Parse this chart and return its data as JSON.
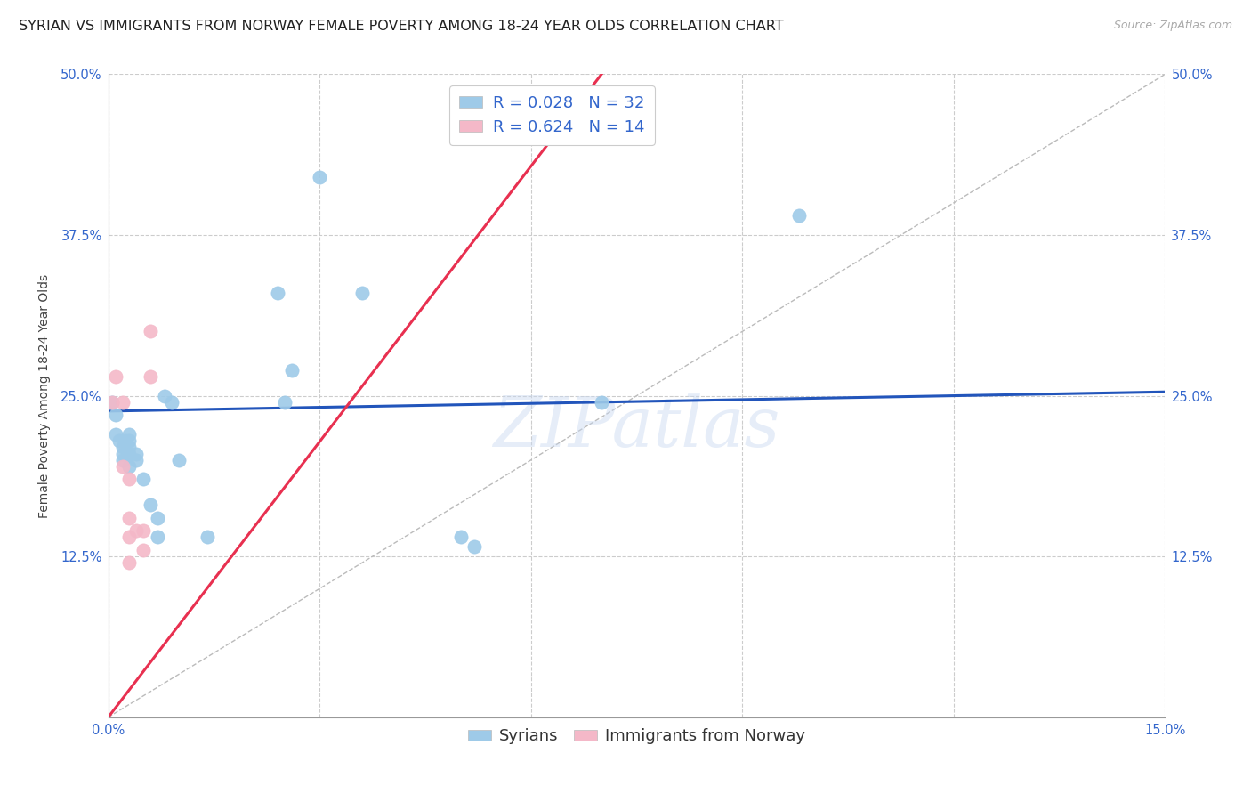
{
  "title": "SYRIAN VS IMMIGRANTS FROM NORWAY FEMALE POVERTY AMONG 18-24 YEAR OLDS CORRELATION CHART",
  "source": "Source: ZipAtlas.com",
  "ylabel": "Female Poverty Among 18-24 Year Olds",
  "xlim": [
    0.0,
    0.15
  ],
  "ylim": [
    0.0,
    0.5
  ],
  "xticks": [
    0.0,
    0.03,
    0.06,
    0.09,
    0.12,
    0.15
  ],
  "xtick_labels": [
    "0.0%",
    "",
    "",
    "",
    "",
    "15.0%"
  ],
  "yticks": [
    0.0,
    0.125,
    0.25,
    0.375,
    0.5
  ],
  "ytick_labels_left": [
    "",
    "12.5%",
    "25.0%",
    "37.5%",
    "50.0%"
  ],
  "ytick_labels_right": [
    "",
    "12.5%",
    "25.0%",
    "37.5%",
    "50.0%"
  ],
  "background_color": "#ffffff",
  "grid_color": "#cccccc",
  "syrians_color": "#9ecae8",
  "norway_color": "#f4b8c8",
  "trend_syrian_color": "#2255bb",
  "trend_norway_color": "#e83050",
  "trend_diag_color": "#bbbbbb",
  "R_syrian": 0.028,
  "N_syrian": 32,
  "R_norway": 0.624,
  "N_norway": 14,
  "legend_label_syrian": "Syrians",
  "legend_label_norway": "Immigrants from Norway",
  "syrians_x": [
    0.0005,
    0.001,
    0.001,
    0.0015,
    0.002,
    0.002,
    0.002,
    0.0025,
    0.003,
    0.003,
    0.003,
    0.003,
    0.003,
    0.004,
    0.004,
    0.005,
    0.006,
    0.007,
    0.007,
    0.008,
    0.009,
    0.01,
    0.014,
    0.024,
    0.025,
    0.026,
    0.03,
    0.036,
    0.05,
    0.052,
    0.07,
    0.098
  ],
  "syrians_y": [
    0.245,
    0.235,
    0.22,
    0.215,
    0.21,
    0.205,
    0.2,
    0.215,
    0.22,
    0.21,
    0.205,
    0.195,
    0.215,
    0.205,
    0.2,
    0.185,
    0.165,
    0.155,
    0.14,
    0.25,
    0.245,
    0.2,
    0.14,
    0.33,
    0.245,
    0.27,
    0.42,
    0.33,
    0.14,
    0.133,
    0.245,
    0.39
  ],
  "norway_x": [
    0.0005,
    0.001,
    0.002,
    0.002,
    0.003,
    0.003,
    0.003,
    0.003,
    0.004,
    0.005,
    0.005,
    0.006,
    0.006,
    0.05
  ],
  "norway_y": [
    0.245,
    0.265,
    0.245,
    0.195,
    0.185,
    0.155,
    0.14,
    0.12,
    0.145,
    0.145,
    0.13,
    0.265,
    0.3,
    0.455
  ],
  "trend_syrian_x0": 0.0,
  "trend_syrian_y0": 0.238,
  "trend_syrian_x1": 0.15,
  "trend_syrian_y1": 0.253,
  "trend_norway_x0": 0.0,
  "trend_norway_y0": 0.0,
  "trend_norway_x1": 0.07,
  "trend_norway_y1": 0.5,
  "marker_size": 120,
  "title_fontsize": 11.5,
  "axis_label_fontsize": 10,
  "tick_fontsize": 10.5,
  "legend_fontsize": 13,
  "watermark": "ZIPatlas"
}
